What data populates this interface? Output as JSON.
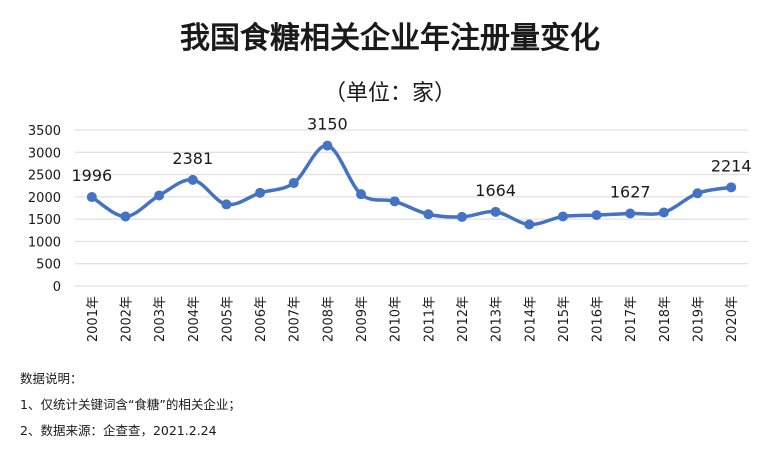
{
  "chart_data": {
    "type": "line",
    "title": "我国食糖相关企业年注册量变化",
    "subtitle": "（单位：家）",
    "xlabel": "",
    "ylabel": "",
    "categories": [
      "2001年",
      "2002年",
      "2003年",
      "2004年",
      "2005年",
      "2006年",
      "2007年",
      "2008年",
      "2009年",
      "2010年",
      "2011年",
      "2012年",
      "2013年",
      "2014年",
      "2015年",
      "2016年",
      "2017年",
      "2018年",
      "2019年",
      "2020年"
    ],
    "series": [
      {
        "values": [
          1996,
          1560,
          2030,
          2381,
          1830,
          2090,
          2310,
          3150,
          2060,
          1900,
          1610,
          1550,
          1664,
          1380,
          1560,
          1590,
          1627,
          1650,
          2080,
          2214
        ]
      }
    ],
    "data_labels": [
      {
        "index": 0,
        "text": "1996"
      },
      {
        "index": 3,
        "text": "2381"
      },
      {
        "index": 7,
        "text": "3150"
      },
      {
        "index": 12,
        "text": "1664"
      },
      {
        "index": 16,
        "text": "1627"
      },
      {
        "index": 19,
        "text": "2214"
      }
    ],
    "ylim": [
      0,
      3500
    ],
    "yticks": [
      0,
      500,
      1000,
      1500,
      2000,
      2500,
      3000,
      3500
    ],
    "grid": true,
    "legend": "none",
    "line_color": "#4472c4"
  },
  "notes": {
    "heading": "数据说明：",
    "items": [
      "1、仅统计关键词含“食糖”的相关企业；",
      "2、数据来源：企查查，2021.2.24"
    ]
  }
}
